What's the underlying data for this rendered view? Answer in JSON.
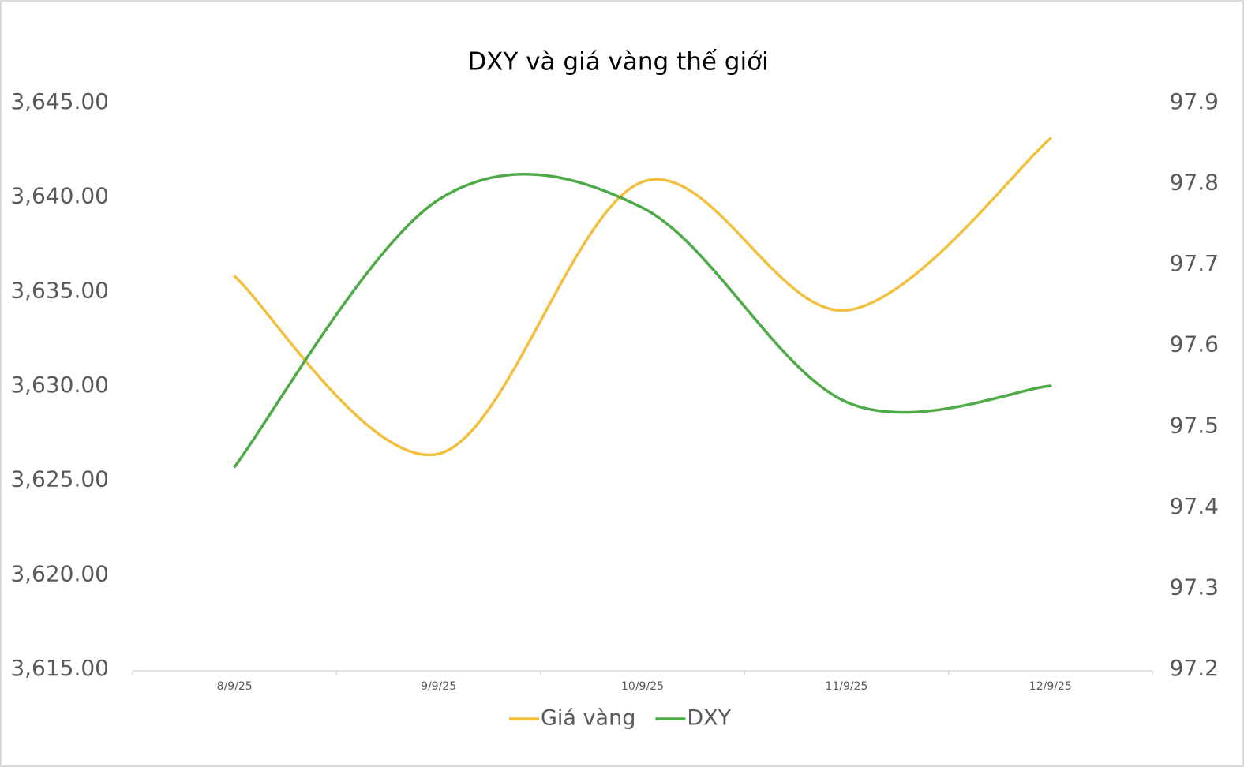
{
  "chart_data": {
    "type": "line",
    "title": "DXY và giá vàng thế giới",
    "categories": [
      "8/9/25",
      "9/9/25",
      "10/9/25",
      "11/9/25",
      "12/9/25"
    ],
    "series": [
      {
        "name": "Giá vàng",
        "color": "#f2c03e",
        "values": [
          3635.8,
          3626.4,
          3640.8,
          3634.0,
          3643.1
        ]
      },
      {
        "name": "DXY",
        "color": "#4daa47",
        "axis": "y2",
        "values": [
          97.45,
          97.78,
          97.77,
          97.53,
          97.55
        ]
      }
    ],
    "ylim": [
      3615,
      3645
    ],
    "yticks": [
      {
        "value": 3615,
        "label": "3,615.00"
      },
      {
        "value": 3620,
        "label": "3,620.00"
      },
      {
        "value": 3625,
        "label": "3,625.00"
      },
      {
        "value": 3630,
        "label": "3,630.00"
      },
      {
        "value": 3635,
        "label": "3,635.00"
      },
      {
        "value": 3640,
        "label": "3,640.00"
      },
      {
        "value": 3645,
        "label": "3,645.00"
      }
    ],
    "y2lim": [
      97.2,
      97.9
    ],
    "y2ticks": [
      97.2,
      97.3,
      97.4,
      97.5,
      97.6,
      97.7,
      97.8,
      97.9
    ],
    "smooth": true,
    "legend": "bottom"
  }
}
